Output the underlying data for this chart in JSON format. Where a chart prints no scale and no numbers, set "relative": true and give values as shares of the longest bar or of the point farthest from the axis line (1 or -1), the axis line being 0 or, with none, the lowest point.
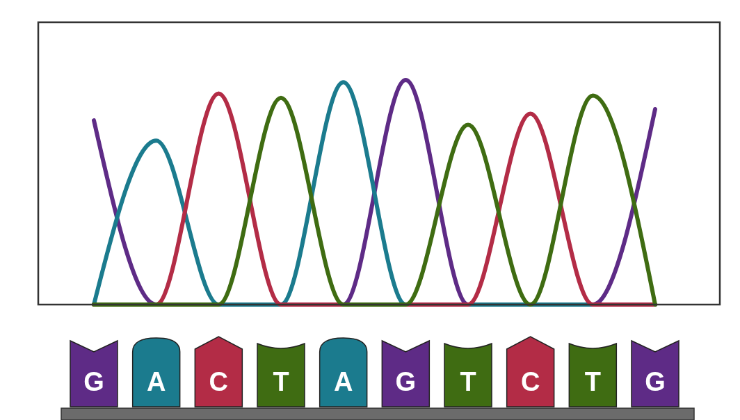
{
  "chart_data": {
    "type": "line",
    "relative": true,
    "tick_labels": "x",
    "categories": [
      "G",
      "A",
      "C",
      "T",
      "A",
      "G",
      "T",
      "C",
      "T",
      "G"
    ],
    "series": [
      {
        "color": "#5e2b86",
        "values": [
          0.82,
          0,
          0,
          0,
          0,
          1.0,
          0,
          0,
          0,
          0.87
        ]
      },
      {
        "color": "#1b7b8e",
        "values": [
          0,
          0.73,
          0,
          0,
          0.99,
          0,
          0,
          0,
          0,
          0
        ]
      },
      {
        "color": "#b32c46",
        "values": [
          0,
          0,
          0.94,
          0,
          0,
          0,
          0,
          0.85,
          0,
          0
        ]
      },
      {
        "color": "#3f6c12",
        "values": [
          0,
          0,
          0,
          0.92,
          0,
          0,
          0.8,
          0,
          0.93,
          0
        ]
      }
    ]
  }
}
